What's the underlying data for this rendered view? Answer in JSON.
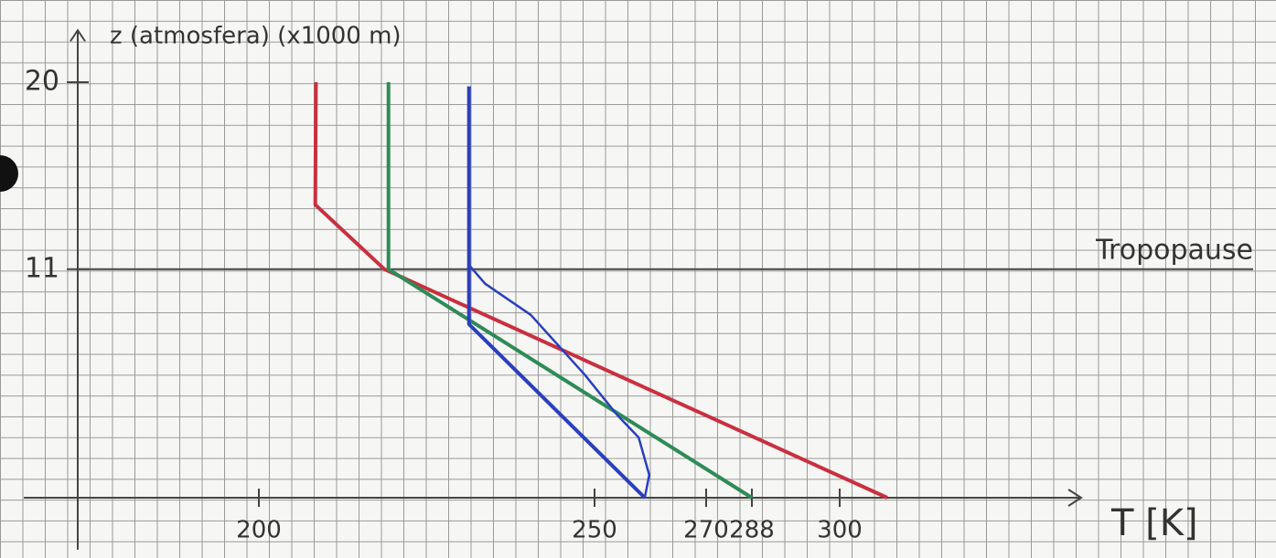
{
  "chart_data": {
    "type": "line",
    "ylabel": "z (atmosfera) (x1000 m)",
    "xlabel": "T [K]",
    "xlim": [
      165,
      333
    ],
    "ylim": [
      -2.5,
      22.5
    ],
    "xticks": [
      200,
      250,
      270,
      288,
      300
    ],
    "yticks": [
      11,
      20
    ],
    "tropopause": {
      "label": "Tropopause",
      "z": 11
    },
    "series": [
      {
        "color": "#c9303f",
        "x": [
          306.5,
          218.7,
          208.4,
          208.5
        ],
        "values": [
          0,
          11,
          14.1,
          20
        ]
      },
      {
        "color": "#2e8b57",
        "x": [
          288,
          219.3,
          219.3
        ],
        "values": [
          0,
          11,
          20
        ]
      },
      {
        "color": "#2a3fbf",
        "x": [
          259,
          231.3,
          231.3
        ],
        "values": [
          0,
          8.35,
          19.8
        ]
      },
      {
        "color": "#2a3fbf",
        "x": [
          259,
          259.8,
          257.9,
          254.0,
          248.6,
          240.5,
          233.7,
          231.3,
          231.3
        ],
        "values": [
          0,
          1.1,
          2.9,
          4,
          5.9,
          8.8,
          10.3,
          11.2,
          19.8
        ]
      }
    ]
  }
}
